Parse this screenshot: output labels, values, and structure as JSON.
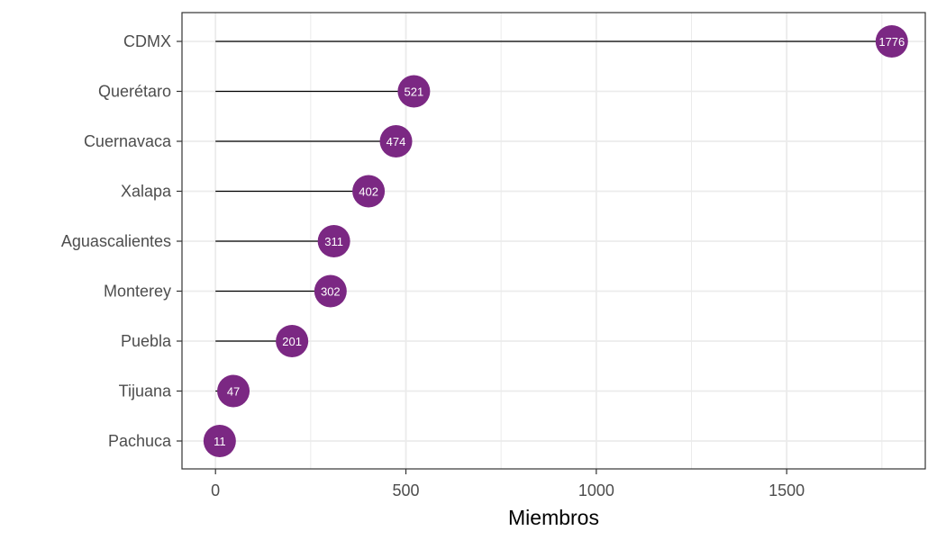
{
  "chart_data": {
    "type": "lollipop",
    "title": "",
    "xlabel": "Miembros",
    "ylabel": "",
    "categories": [
      "CDMX",
      "Querétaro",
      "Cuernavaca",
      "Xalapa",
      "Aguascalientes",
      "Monterey",
      "Puebla",
      "Tijuana",
      "Pachuca"
    ],
    "values": [
      1776,
      521,
      474,
      402,
      311,
      302,
      201,
      47,
      11
    ],
    "xticks": [
      0,
      500,
      1000,
      1500
    ],
    "xlim": [
      -88,
      1864
    ],
    "grid": true,
    "legend": "none",
    "colors": {
      "point": "#7b2883",
      "stem": "#000000",
      "label": "#ffffff",
      "grid": "#ebebeb",
      "panel_border": "#333333"
    }
  }
}
